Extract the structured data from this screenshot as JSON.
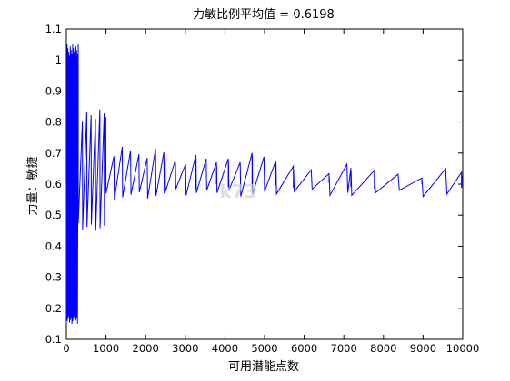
{
  "chart_data": {
    "type": "line",
    "title": "力敏比例平均值 = 0.6198",
    "xlabel": "可用潜能点数",
    "ylabel": "力量：敏捷",
    "xlim": [
      0,
      10000
    ],
    "ylim": [
      0.1,
      1.1
    ],
    "x_ticks": [
      0,
      1000,
      2000,
      3000,
      4000,
      5000,
      6000,
      7000,
      8000,
      9000,
      10000
    ],
    "y_ticks": [
      0.1,
      0.2,
      0.3,
      0.4,
      0.5,
      0.6,
      0.7,
      0.8,
      0.9,
      1,
      1.1
    ],
    "grid": false,
    "legend": "none",
    "series_color": "#0000ff",
    "series": [
      {
        "oscillation_segments": [
          {
            "x_start": 0,
            "x_end": 300,
            "spacing": 20,
            "low": 0.15,
            "high": 1.05
          },
          {
            "x_start": 300,
            "x_end": 1000,
            "spacing": 110,
            "low": 0.45,
            "high": 0.84
          },
          {
            "x_start": 1000,
            "x_end": 2500,
            "spacing": 210,
            "low": 0.55,
            "high": 0.72
          },
          {
            "x_start": 2500,
            "x_end": 3800,
            "spacing": 260,
            "low": 0.56,
            "high": 0.7
          },
          {
            "x_start": 3800,
            "x_end": 5300,
            "spacing": 300,
            "low": 0.56,
            "high": 0.7
          },
          {
            "x_start": 5300,
            "x_end": 7200,
            "spacing": 450,
            "low": 0.56,
            "high": 0.67
          },
          {
            "x_start": 7200,
            "x_end": 10000,
            "spacing": 600,
            "low": 0.56,
            "high": 0.65
          }
        ]
      }
    ]
  },
  "watermark": {
    "text": "k73"
  }
}
